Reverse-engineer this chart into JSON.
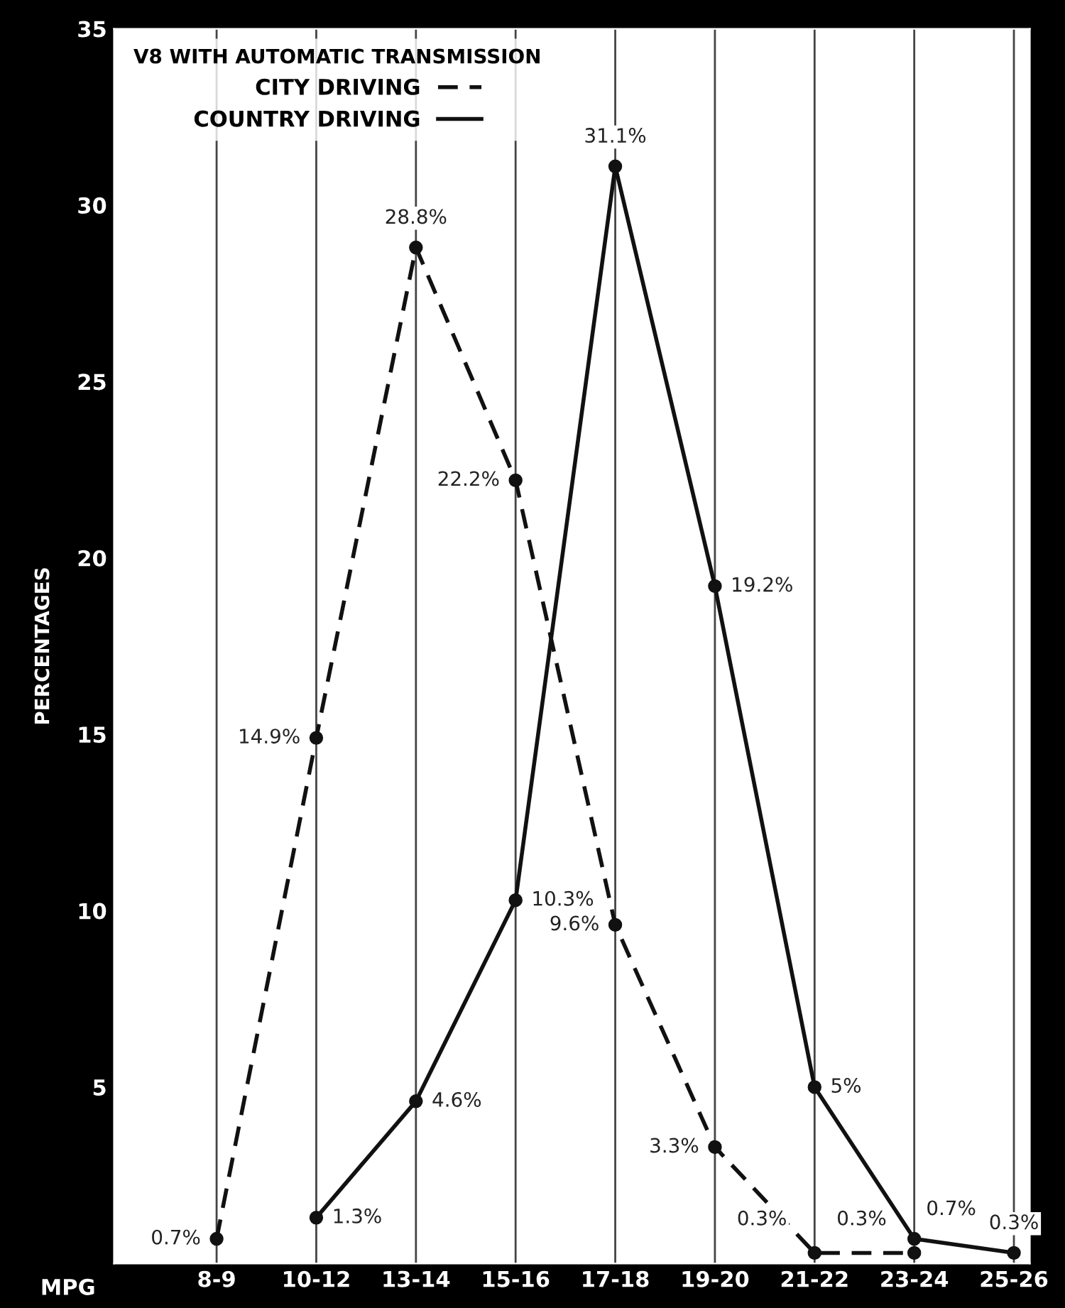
{
  "chart_data": {
    "type": "line",
    "xlabel": "MPG",
    "ylabel": "PERCENTAGES",
    "legend_title": "V8 WITH AUTOMATIC TRANSMISSION",
    "legend": "top left",
    "grid": "x",
    "marker": "circle",
    "categories": [
      "8-9",
      "10-12",
      "13-14",
      "15-16",
      "17-18",
      "19-20",
      "21-22",
      "23-24",
      "25-26"
    ],
    "ylim": [
      0,
      35
    ],
    "yticks": [
      5,
      10,
      15,
      20,
      25,
      30,
      35
    ],
    "series": [
      {
        "name": "CITY DRIVING",
        "color": "#111111",
        "line_style": "dashed",
        "values": [
          0.7,
          14.9,
          28.8,
          22.2,
          9.6,
          3.3,
          0.3,
          0.3,
          null
        ],
        "value_labels": [
          "0.7%",
          "14.9%",
          "28.8%",
          "22.2%",
          "9.6%",
          "3.3%",
          "0.3%",
          "0.3%",
          null
        ]
      },
      {
        "name": "COUNTRY DRIVING",
        "color": "#111111",
        "line_style": "solid",
        "values": [
          null,
          1.3,
          4.6,
          10.3,
          31.1,
          19.2,
          5,
          0.7,
          0.3
        ],
        "value_labels": [
          null,
          "1.3%",
          "4.6%",
          "10.3%",
          "31.1%",
          "19.2%",
          "5%",
          "0.7%",
          "0.3%"
        ]
      }
    ]
  }
}
